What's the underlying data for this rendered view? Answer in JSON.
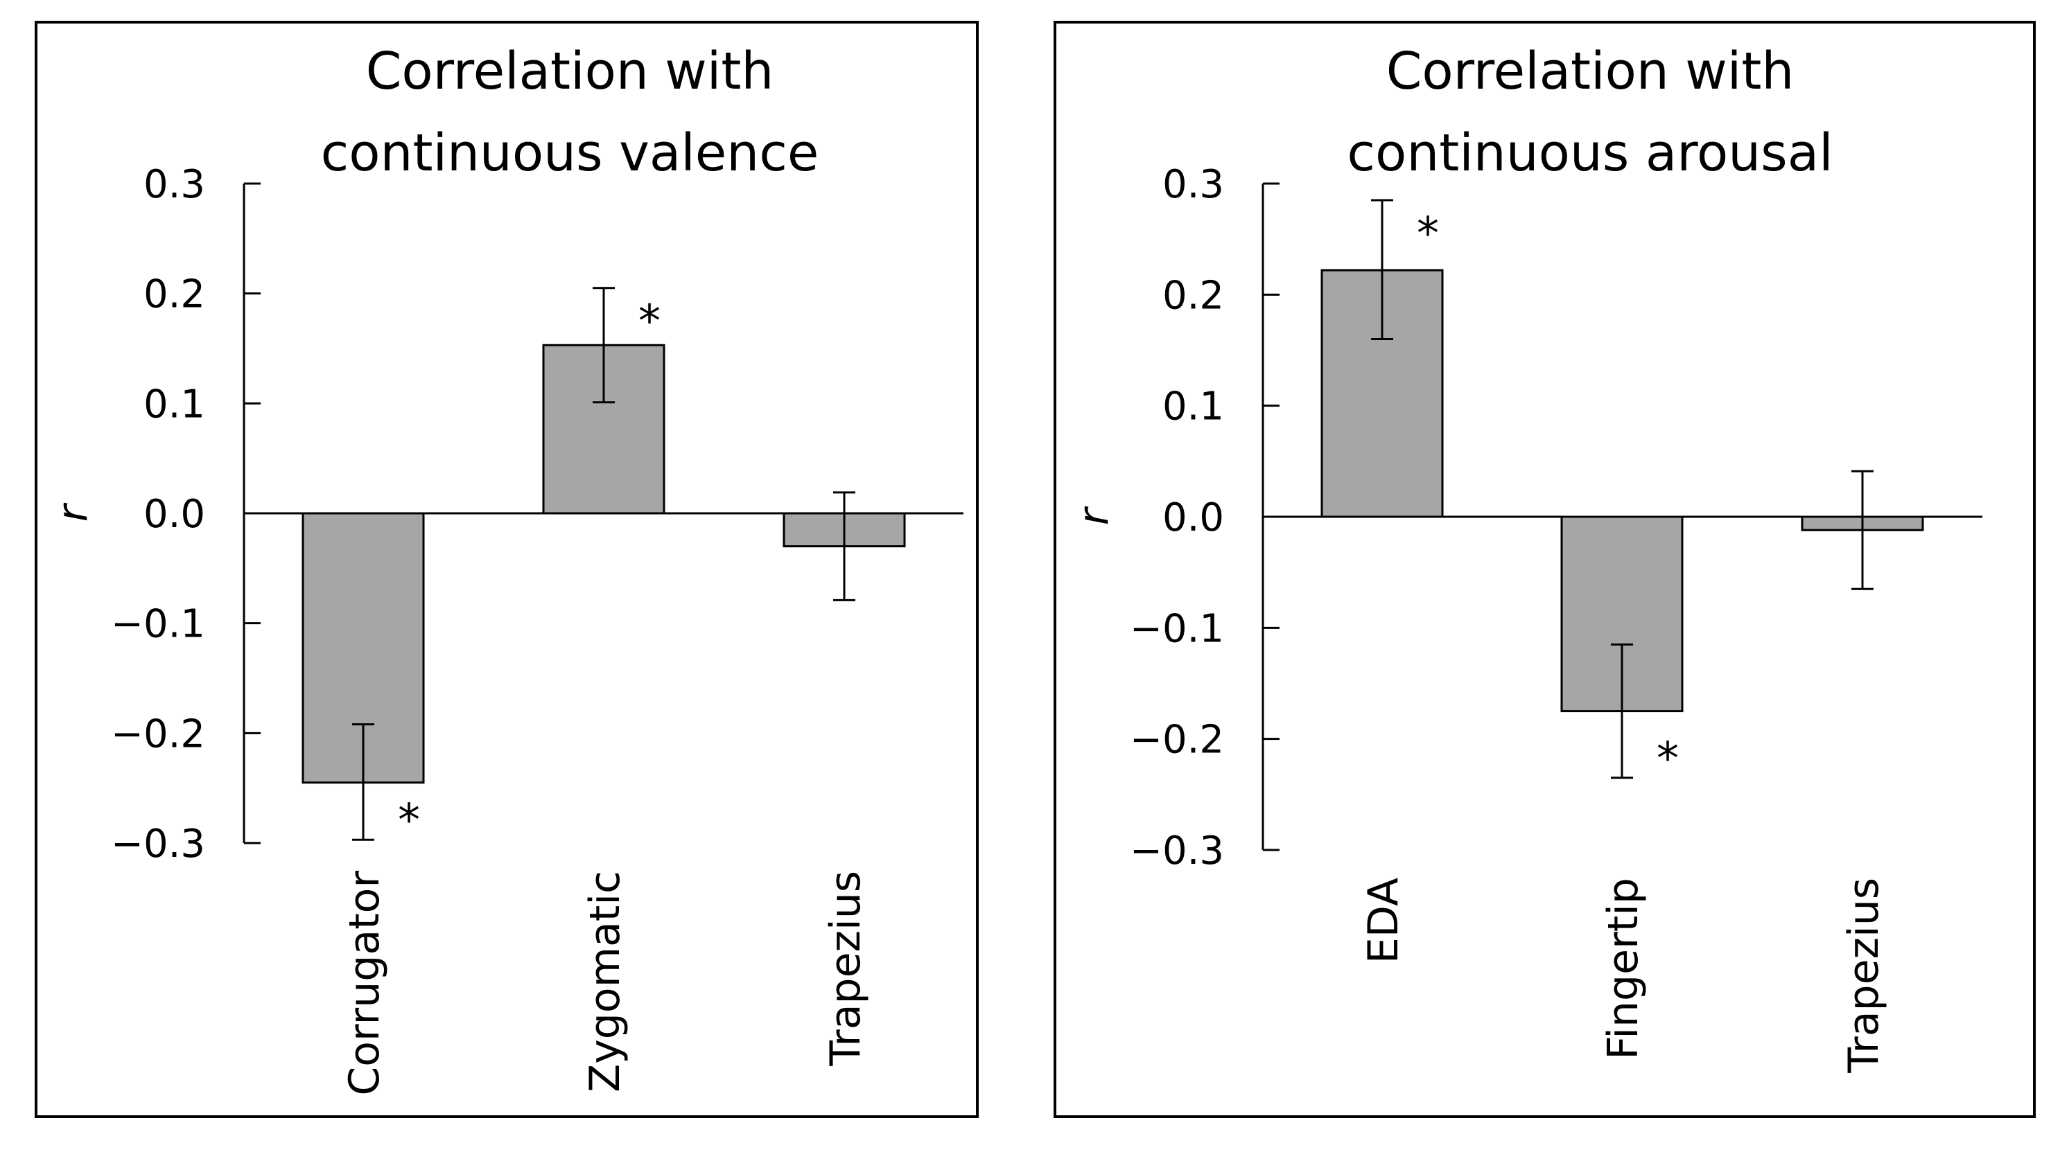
{
  "chart_data": [
    {
      "type": "bar",
      "title": [
        "Correlation with",
        "continuous valence"
      ],
      "categories": [
        "Corrugator",
        "Zygomatic",
        "Trapezius"
      ],
      "values": [
        -0.245,
        0.153,
        -0.03
      ],
      "error_low": [
        -0.297,
        0.101,
        -0.079
      ],
      "error_high": [
        -0.192,
        0.205,
        0.019
      ],
      "significant": [
        true,
        true,
        false
      ],
      "significance_marker": "*",
      "ylabel": "r",
      "ylim": [
        -0.3,
        0.3
      ],
      "yticks": [
        "0.3",
        "0.2",
        "0.1",
        "0.0",
        "−0.1",
        "−0.2",
        "−0.3"
      ],
      "bar_color": "#a6a6a6",
      "grid": false
    },
    {
      "type": "bar",
      "title": [
        "Correlation with",
        "continuous arousal"
      ],
      "categories": [
        "EDA",
        "Fingertip",
        "Trapezius"
      ],
      "values": [
        0.222,
        -0.175,
        -0.012
      ],
      "error_low": [
        0.16,
        -0.235,
        -0.065
      ],
      "error_high": [
        0.285,
        -0.115,
        0.041
      ],
      "significant": [
        true,
        true,
        false
      ],
      "significance_marker": "*",
      "ylabel": "r",
      "ylim": [
        -0.3,
        0.3
      ],
      "yticks": [
        "0.3",
        "0.2",
        "0.1",
        "0.0",
        "−0.1",
        "−0.2",
        "−0.3"
      ],
      "bar_color": "#a6a6a6",
      "grid": false
    }
  ]
}
